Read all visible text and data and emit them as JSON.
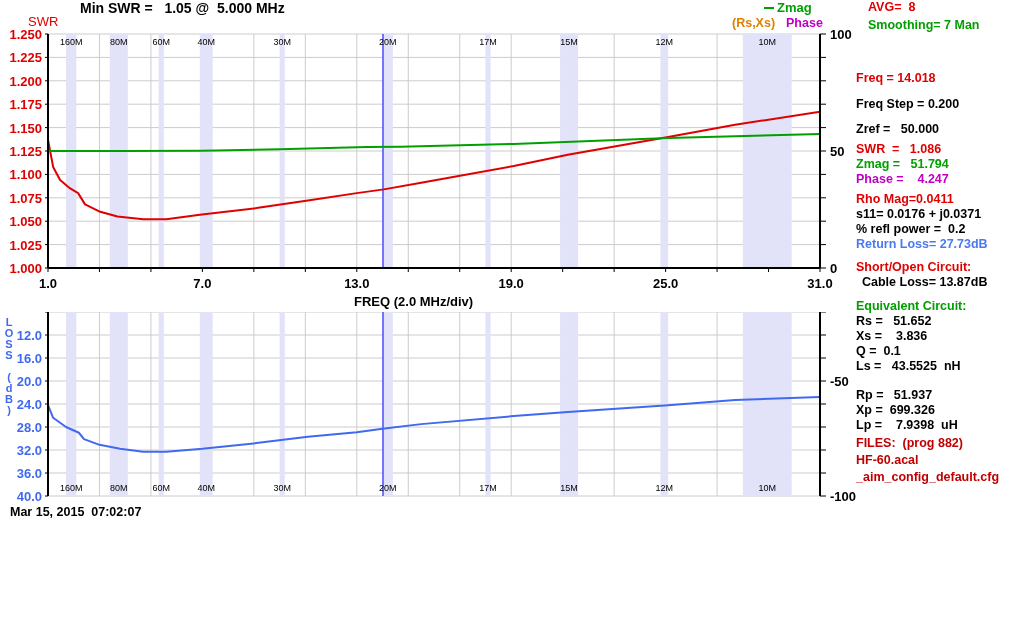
{
  "chart_data": [
    {
      "type": "line",
      "title": "Min SWR =   1.05 @  5.000 MHz",
      "ylabel": "SWR",
      "xlabel": "FREQ (2.0 MHz/div)",
      "xlim": [
        1,
        31
      ],
      "xticks": [
        {
          "value": 1,
          "label": "1.0"
        },
        {
          "value": 3,
          "label": null
        },
        {
          "value": 5,
          "label": null
        },
        {
          "value": 7,
          "label": "7.0"
        },
        {
          "value": 9,
          "label": null
        },
        {
          "value": 11,
          "label": null
        },
        {
          "value": 13,
          "label": "13.0"
        },
        {
          "value": 15,
          "label": null
        },
        {
          "value": 17,
          "label": null
        },
        {
          "value": 19,
          "label": "19.0"
        },
        {
          "value": 21,
          "label": null
        },
        {
          "value": 23,
          "label": null
        },
        {
          "value": 25,
          "label": "25.0"
        },
        {
          "value": 27,
          "label": null
        },
        {
          "value": 29,
          "label": null
        },
        {
          "value": 31,
          "label": "31.0"
        }
      ],
      "ylim": [
        1,
        1.25
      ],
      "yticks": [
        {
          "value": 1,
          "label": "1.000"
        },
        {
          "value": 1.025,
          "label": "1.025"
        },
        {
          "value": 1.05,
          "label": "1.050"
        },
        {
          "value": 1.075,
          "label": "1.075"
        },
        {
          "value": 1.1,
          "label": "1.100"
        },
        {
          "value": 1.125,
          "label": "1.125"
        },
        {
          "value": 1.15,
          "label": "1.150"
        },
        {
          "value": 1.175,
          "label": "1.175"
        },
        {
          "value": 1.2,
          "label": "1.200"
        },
        {
          "value": 1.225,
          "label": "1.225"
        },
        {
          "value": 1.25,
          "label": "1.250"
        }
      ],
      "y2lim": [
        0,
        100
      ],
      "y2ticks": [
        0,
        {
          "value": 10,
          "label": null
        },
        {
          "value": 20,
          "label": null
        },
        {
          "value": 30,
          "label": null
        },
        {
          "value": 40,
          "label": null
        },
        50,
        {
          "value": 60,
          "label": null
        },
        {
          "value": 70,
          "label": null
        },
        {
          "value": 80,
          "label": null
        },
        {
          "value": 90,
          "label": null
        },
        100
      ],
      "series": [
        {
          "color": "#e00000",
          "x": [
            1.0,
            1.2,
            1.47,
            1.86,
            2.17,
            2.44,
            3.03,
            3.7,
            4.7,
            5.6,
            6.9,
            9.1,
            11.1,
            13.0,
            14.05,
            15.5,
            19.1,
            21.2,
            25.1,
            27.7,
            31.0
          ],
          "values": [
            1.137,
            1.108,
            1.094,
            1.085,
            1.08,
            1.068,
            1.06,
            1.055,
            1.052,
            1.052,
            1.057,
            1.064,
            1.072,
            1.08,
            1.084,
            1.091,
            1.109,
            1.121,
            1.14,
            1.153,
            1.167
          ]
        },
        {
          "name": "Zmag",
          "color": "#00a000",
          "axis": "y2",
          "x": [
            1.0,
            4.0,
            7.0,
            10.0,
            13.4,
            14.7,
            19.1,
            25.1,
            31.0
          ],
          "values": [
            50.0,
            50.0,
            50.1,
            50.8,
            51.7,
            51.8,
            53.0,
            55.6,
            57.3
          ]
        }
      ],
      "grid": true,
      "legend": "top right",
      "bands": [
        {
          "axis": "x",
          "from": 1.7,
          "to": 2.1,
          "label": "160M",
          "color": "#e2e2f8"
        },
        {
          "axis": "x",
          "from": 3.4,
          "to": 4.1,
          "label": "80M",
          "color": "#e2e2f8"
        },
        {
          "axis": "x",
          "from": 5.3,
          "to": 5.5,
          "label": "60M",
          "color": "#e2e2f8"
        },
        {
          "axis": "x",
          "from": 6.9,
          "to": 7.4,
          "label": "40M",
          "color": "#e2e2f8"
        },
        {
          "axis": "x",
          "from": 10.0,
          "to": 10.2,
          "label": "30M",
          "color": "#e2e2f8"
        },
        {
          "axis": "x",
          "from": 14.0,
          "to": 14.4,
          "label": "20M",
          "color": "#e2e2f8"
        },
        {
          "axis": "x",
          "from": 18.0,
          "to": 18.2,
          "label": "17M",
          "color": "#e2e2f8"
        },
        {
          "axis": "x",
          "from": 20.9,
          "to": 21.6,
          "label": "15M",
          "color": "#e2e2f8"
        },
        {
          "axis": "x",
          "from": 24.8,
          "to": 25.1,
          "label": "12M",
          "color": "#e2e2f8"
        },
        {
          "axis": "x",
          "from": 28.0,
          "to": 29.9,
          "label": "10M",
          "color": "#e2e2f8"
        }
      ],
      "ref_lines": [
        {
          "axis": "x",
          "value": 14.018,
          "color": "#0000ff"
        }
      ],
      "annotations": [
        "AVG=  8",
        "Smoothing= 7 Man",
        "(Rs,Xs)",
        "Phase",
        "Freq = 14.018",
        "Freq Step = 0.200",
        "Zref =   50.000",
        "SWR  =   1.086",
        "Zmag =   51.794",
        "Phase =    4.247",
        "Rho Mag=0.0411",
        "s11= 0.0176 + j0.0371",
        "% refl power =  0.2",
        "Return Loss= 27.73dB"
      ]
    },
    {
      "type": "line",
      "ylabel": "LOSS (dB)",
      "xlim": [
        1,
        31
      ],
      "tick_labels": "y",
      "xticks": [
        1,
        3,
        5,
        7,
        9,
        11,
        13,
        15,
        17,
        19,
        21,
        23,
        25,
        27,
        29,
        31
      ],
      "ylim": [
        40,
        8
      ],
      "yticks": [
        {
          "value": 8,
          "label": null
        },
        {
          "value": 12,
          "label": "12.0"
        },
        {
          "value": 16,
          "label": "16.0"
        },
        {
          "value": 20,
          "label": "20.0"
        },
        {
          "value": 24,
          "label": "24.0"
        },
        {
          "value": 28,
          "label": "28.0"
        },
        {
          "value": 32,
          "label": "32.0"
        },
        {
          "value": 36,
          "label": "36.0"
        },
        {
          "value": 40,
          "label": "40.0"
        }
      ],
      "y2lim": [
        -100,
        -20
      ],
      "y2ticks": [
        -100,
        {
          "value": -90,
          "label": null
        },
        {
          "value": -80,
          "label": null
        },
        {
          "value": -70,
          "label": null
        },
        {
          "value": -60,
          "label": null
        },
        -50,
        {
          "value": -40,
          "label": null
        },
        {
          "value": -30,
          "label": null
        },
        {
          "value": -20,
          "label": null
        }
      ],
      "series": [
        {
          "color": "#4169f0",
          "x": [
            1.0,
            1.2,
            1.7,
            2.2,
            2.4,
            3.0,
            3.8,
            4.7,
            5.6,
            7.0,
            9.1,
            11.1,
            13.0,
            14.0,
            15.5,
            19.1,
            21.2,
            25.1,
            27.7,
            31.0
          ],
          "values": [
            24.2,
            26.4,
            28.0,
            29.0,
            30.1,
            31.1,
            31.8,
            32.3,
            32.3,
            31.8,
            30.8,
            29.7,
            28.9,
            28.3,
            27.5,
            26.1,
            25.4,
            24.2,
            23.3,
            22.8
          ]
        }
      ],
      "grid": true,
      "bands": [
        {
          "axis": "x",
          "from": 1.7,
          "to": 2.1,
          "label": "160M",
          "color": "#e2e2f8"
        },
        {
          "axis": "x",
          "from": 3.4,
          "to": 4.1,
          "label": "80M",
          "color": "#e2e2f8"
        },
        {
          "axis": "x",
          "from": 5.3,
          "to": 5.5,
          "label": "60M",
          "color": "#e2e2f8"
        },
        {
          "axis": "x",
          "from": 6.9,
          "to": 7.4,
          "label": "40M",
          "color": "#e2e2f8"
        },
        {
          "axis": "x",
          "from": 10.0,
          "to": 10.2,
          "label": "30M",
          "color": "#e2e2f8"
        },
        {
          "axis": "x",
          "from": 14.0,
          "to": 14.4,
          "label": "20M",
          "color": "#e2e2f8"
        },
        {
          "axis": "x",
          "from": 18.0,
          "to": 18.2,
          "label": "17M",
          "color": "#e2e2f8"
        },
        {
          "axis": "x",
          "from": 20.9,
          "to": 21.6,
          "label": "15M",
          "color": "#e2e2f8"
        },
        {
          "axis": "x",
          "from": 24.8,
          "to": 25.1,
          "label": "12M",
          "color": "#e2e2f8"
        },
        {
          "axis": "x",
          "from": 28.0,
          "to": 29.9,
          "label": "10M",
          "color": "#e2e2f8"
        }
      ],
      "ref_lines": [
        {
          "axis": "x",
          "value": 14.018,
          "color": "#0000ff"
        }
      ],
      "annotations": [
        "Short/Open Circuit:",
        "Cable Loss= 13.87dB",
        "Equivalent Circuit:",
        "Rs =   51.652",
        "Xs =    3.836",
        "Q =  0.1",
        "Ls =   43.5525  nH",
        "Rp =   51.937",
        "Xp =  699.326",
        "Lp =    7.9398  uH",
        "FILES:  (prog 882)",
        "HF-60.acal",
        "_aim_config_default.cfg",
        "Mar 15, 2015  07:02:07"
      ]
    }
  ]
}
